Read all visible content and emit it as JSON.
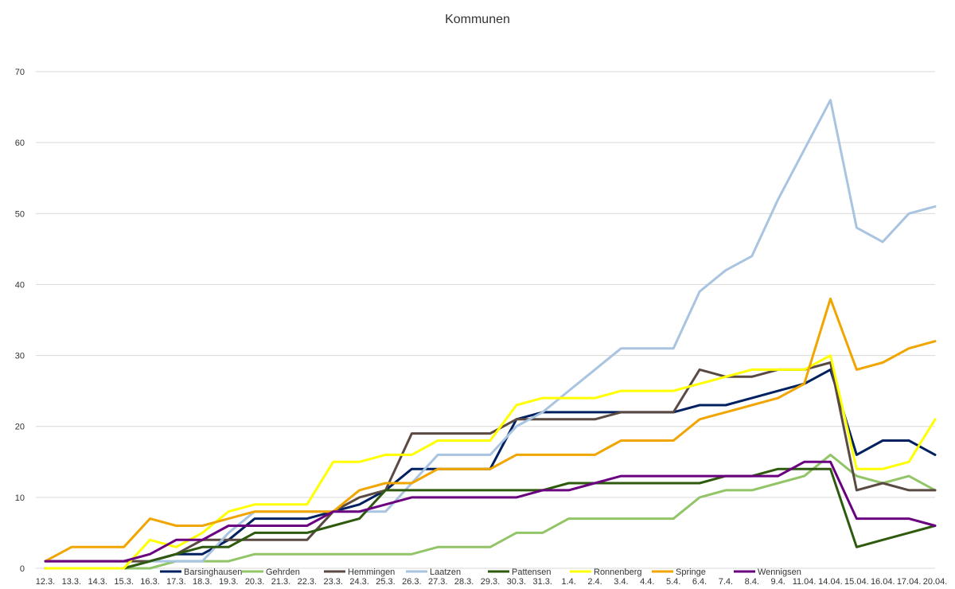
{
  "chart_data": {
    "type": "line",
    "title": "Kommunen",
    "xlabel": "",
    "ylabel": "",
    "ylim": [
      0,
      70
    ],
    "yticks": [
      0,
      10,
      20,
      30,
      40,
      50,
      60,
      70
    ],
    "grid": true,
    "legend_position": "bottom",
    "categories": [
      "12.3.",
      "13.3.",
      "14.3.",
      "15.3.",
      "16.3.",
      "17.3.",
      "18.3.",
      "19.3.",
      "20.3.",
      "21.3.",
      "22.3.",
      "23.3.",
      "24.3.",
      "25.3.",
      "26.3.",
      "27.3.",
      "28.3.",
      "29.3.",
      "30.3.",
      "31.3.",
      "1.4.",
      "2.4.",
      "3.4.",
      "4.4.",
      "5.4.",
      "6.4.",
      "7.4.",
      "8.4.",
      "9.4.",
      "11.04.",
      "14.04.",
      "15.04.",
      "16.04.",
      "17.04.",
      "20.04."
    ],
    "series": [
      {
        "name": "Barsinghausen",
        "color": "#002060",
        "values": [
          0,
          0,
          0,
          0,
          1,
          2,
          2,
          4,
          7,
          7,
          7,
          8,
          9,
          11,
          14,
          14,
          14,
          14,
          21,
          22,
          22,
          22,
          22,
          22,
          22,
          23,
          23,
          24,
          25,
          26,
          28,
          16,
          18,
          18,
          16
        ]
      },
      {
        "name": "Gehrden",
        "color": "#92C468",
        "values": [
          0,
          0,
          0,
          0,
          0,
          1,
          1,
          1,
          2,
          2,
          2,
          2,
          2,
          2,
          2,
          3,
          3,
          3,
          5,
          5,
          7,
          7,
          7,
          7,
          7,
          10,
          11,
          11,
          12,
          13,
          16,
          13,
          12,
          13,
          11
        ]
      },
      {
        "name": "Hemmingen",
        "color": "#5A4A42",
        "values": [
          1,
          1,
          1,
          1,
          1,
          2,
          4,
          4,
          4,
          4,
          4,
          8,
          10,
          11,
          19,
          19,
          19,
          19,
          21,
          21,
          21,
          21,
          22,
          22,
          22,
          28,
          27,
          27,
          28,
          28,
          29,
          11,
          12,
          11,
          11
        ]
      },
      {
        "name": "Laatzen",
        "color": "#A9C4E0",
        "values": [
          0,
          0,
          0,
          0,
          1,
          1,
          1,
          5,
          8,
          8,
          8,
          8,
          8,
          8,
          12,
          16,
          16,
          16,
          20,
          22,
          25,
          28,
          31,
          31,
          31,
          39,
          42,
          44,
          52,
          59,
          66,
          48,
          46,
          50,
          51
        ]
      },
      {
        "name": "Pattensen",
        "color": "#2E5A0E",
        "values": [
          0,
          0,
          0,
          0,
          1,
          2,
          3,
          3,
          5,
          5,
          5,
          6,
          7,
          11,
          11,
          11,
          11,
          11,
          11,
          11,
          12,
          12,
          12,
          12,
          12,
          12,
          13,
          13,
          14,
          14,
          14,
          3,
          4,
          5,
          6
        ]
      },
      {
        "name": "Ronnenberg",
        "color": "#FFFF00",
        "values": [
          0,
          0,
          0,
          0,
          4,
          3,
          5,
          8,
          9,
          9,
          9,
          15,
          15,
          16,
          16,
          18,
          18,
          18,
          23,
          24,
          24,
          24,
          25,
          25,
          25,
          26,
          27,
          28,
          28,
          28,
          30,
          14,
          14,
          15,
          21
        ]
      },
      {
        "name": "Springe",
        "color": "#F0A500",
        "values": [
          1,
          3,
          3,
          3,
          7,
          6,
          6,
          7,
          8,
          8,
          8,
          8,
          11,
          12,
          12,
          14,
          14,
          14,
          16,
          16,
          16,
          16,
          18,
          18,
          18,
          21,
          22,
          23,
          24,
          26,
          38,
          28,
          29,
          31,
          32
        ]
      },
      {
        "name": "Wennigsen",
        "color": "#6A0080",
        "values": [
          1,
          1,
          1,
          1,
          2,
          4,
          4,
          6,
          6,
          6,
          6,
          8,
          8,
          9,
          10,
          10,
          10,
          10,
          10,
          11,
          11,
          12,
          13,
          13,
          13,
          13,
          13,
          13,
          13,
          15,
          15,
          7,
          7,
          7,
          6
        ]
      }
    ]
  }
}
